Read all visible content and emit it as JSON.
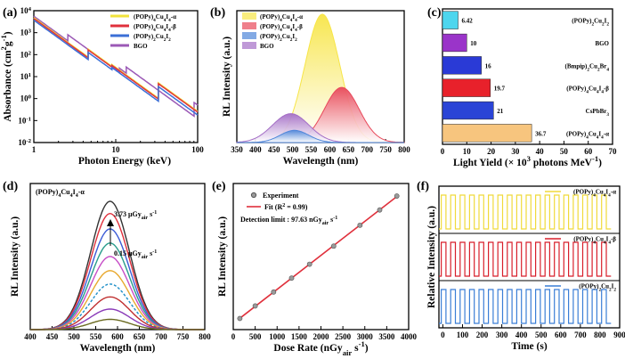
{
  "figure": {
    "panels": [
      {
        "label": "(a)",
        "chart_data": {
          "type": "line",
          "xlabel": "Photon Energy (keV)",
          "ylabel": "Absorbance (cm2g-1)",
          "xscale": "log",
          "yscale": "log",
          "xlim": [
            1,
            100
          ],
          "ylim": [
            0.01,
            10000
          ],
          "x_ticks": [
            "1",
            "10",
            "100"
          ],
          "y_ticks": [
            "10-2",
            "10-1",
            "100",
            "101",
            "102",
            "103",
            "104"
          ],
          "edges_keV": {
            "Cu": 8.98,
            "I": 33.17,
            "Bi": 13.42,
            "Bi_L3": 90.53,
            "Ge": 11.1
          },
          "series": [
            {
              "name": "(POPy)4Cu4I4-α",
              "color": "#f2e33c",
              "at1keV": 4500,
              "pre_I_K": 0.55
            },
            {
              "name": "(POPy)4Cu4I4-β",
              "color": "#e0303c",
              "at1keV": 4400,
              "pre_I_K": 0.5
            },
            {
              "name": "(POPy)2Cu2I2",
              "color": "#3b6fd6",
              "at1keV": 3800,
              "pre_I_K": 0.42
            },
            {
              "name": "BGO",
              "color": "#9b59b6",
              "at1keV": 4800,
              "pre_Bi_K": 0.35
            }
          ]
        }
      },
      {
        "label": "(b)",
        "chart_data": {
          "type": "area",
          "xlabel": "Wavelength (nm)",
          "ylabel": "RL Intensity (a.u.)",
          "xlim": [
            350,
            800
          ],
          "x_ticks": [
            "350",
            "400",
            "450",
            "500",
            "550",
            "600",
            "650",
            "700",
            "750",
            "800"
          ],
          "series": [
            {
              "name": "(POPy)4Cu4I4-α",
              "color": "#f7e547",
              "peak_nm": 580,
              "fwhm_nm": 110,
              "rel_height": 1.0
            },
            {
              "name": "(POPy)4Cu4I4-β",
              "color": "#e8485a",
              "peak_nm": 632,
              "fwhm_nm": 110,
              "rel_height": 0.43
            },
            {
              "name": "(POPy)2Cu2I2",
              "color": "#4f86d9",
              "peak_nm": 505,
              "fwhm_nm": 90,
              "rel_height": 0.095
            },
            {
              "name": "BGO",
              "color": "#a46ec6",
              "peak_nm": 495,
              "fwhm_nm": 115,
              "rel_height": 0.225
            }
          ]
        }
      },
      {
        "label": "(c)",
        "chart_data": {
          "type": "bar",
          "orientation": "horizontal",
          "xlabel": "Light Yield (× 103 photons MeV-1)",
          "xlim": [
            0,
            70
          ],
          "x_ticks": [
            "0",
            "10",
            "20",
            "30",
            "40",
            "50",
            "60",
            "70"
          ],
          "categories": [
            "(POPy)2Cu2I2",
            "BGO",
            "(Bmpip)2Cu2Br4",
            "(POPy)4Cu4I4-β",
            "CsPbBr3",
            "(POPy)4Cu4I4-α"
          ],
          "values": [
            6.42,
            10,
            16,
            19.7,
            21,
            36.7
          ],
          "value_labels": [
            "6.42",
            "10",
            "16",
            "19.7",
            "21",
            "36.7"
          ],
          "colors": [
            "#4dd6ee",
            "#9a34c9",
            "#2a3ad6",
            "#e8212b",
            "#2a44d6",
            "#f7c57e"
          ]
        }
      },
      {
        "label": "(d)",
        "chart_data": {
          "type": "line",
          "title": "(POPy)4Cu4I4-α",
          "xlabel": "Wavelength (nm)",
          "ylabel": "RL Intensity (a.u.)",
          "xlim": [
            400,
            800
          ],
          "x_ticks": [
            "400",
            "450",
            "500",
            "550",
            "600",
            "650",
            "700",
            "750",
            "800"
          ],
          "peak_nm": 583,
          "fwhm_nm": 105,
          "annotations": [
            "3.73 μGyair s-1",
            "0.15 μGyair s-1"
          ],
          "series": [
            {
              "color": "#333333",
              "amp": 1.0,
              "dash": ""
            },
            {
              "color": "#e0303c",
              "amp": 0.905,
              "dash": ""
            },
            {
              "color": "#3b5bd6",
              "amp": 0.785,
              "dash": ""
            },
            {
              "color": "#2a9c8c",
              "amp": 0.675,
              "dash": ""
            },
            {
              "color": "#c64dc6",
              "amp": 0.57,
              "dash": ""
            },
            {
              "color": "#e8a82e",
              "amp": 0.46,
              "dash": ""
            },
            {
              "color": "#1e8fc8",
              "amp": 0.355,
              "dash": "3,2"
            },
            {
              "color": "#c03030",
              "amp": 0.255,
              "dash": ""
            },
            {
              "color": "#8a3ab8",
              "amp": 0.16,
              "dash": ""
            },
            {
              "color": "#6a6a20",
              "amp": 0.08,
              "dash": ""
            }
          ]
        }
      },
      {
        "label": "(e)",
        "chart_data": {
          "type": "scatter",
          "xlabel": "Dose Rate (nGyair s-1)",
          "ylabel": "RL Intensity (a.u.)",
          "xlim": [
            0,
            4000
          ],
          "ylim": [
            0,
            1.05
          ],
          "x_ticks": [
            "0",
            "500",
            "1000",
            "1500",
            "2000",
            "2500",
            "3000",
            "3500",
            "4000"
          ],
          "legend": [
            "Experiment",
            "Fit (R2 = 0.99)"
          ],
          "annotation": "Detection limit : 97.63 nGyair s-1",
          "fit_color": "#e0303c",
          "x": [
            150,
            500,
            920,
            1330,
            1740,
            2290,
            2890,
            3340,
            3730
          ],
          "y": [
            0.08,
            0.17,
            0.27,
            0.37,
            0.47,
            0.6,
            0.75,
            0.86,
            0.96
          ]
        }
      },
      {
        "label": "(f)",
        "chart_data": {
          "type": "line",
          "xlabel": "Time (s)",
          "ylabel": "Relative Intensity (a.u.)",
          "xlim": [
            -20,
            900
          ],
          "x_ticks": [
            "0",
            "100",
            "200",
            "300",
            "400",
            "500",
            "600",
            "700",
            "800",
            "900"
          ],
          "period_s": 48,
          "cycles": 18,
          "series": [
            {
              "name": "(POPy)4Cu4I4-α",
              "color": "#f0da3a"
            },
            {
              "name": "(POPy)4Cu4I4-β",
              "color": "#d81e2a"
            },
            {
              "name": "(POPy)2Cu2I2",
              "color": "#3a7ed6"
            }
          ]
        }
      }
    ]
  }
}
